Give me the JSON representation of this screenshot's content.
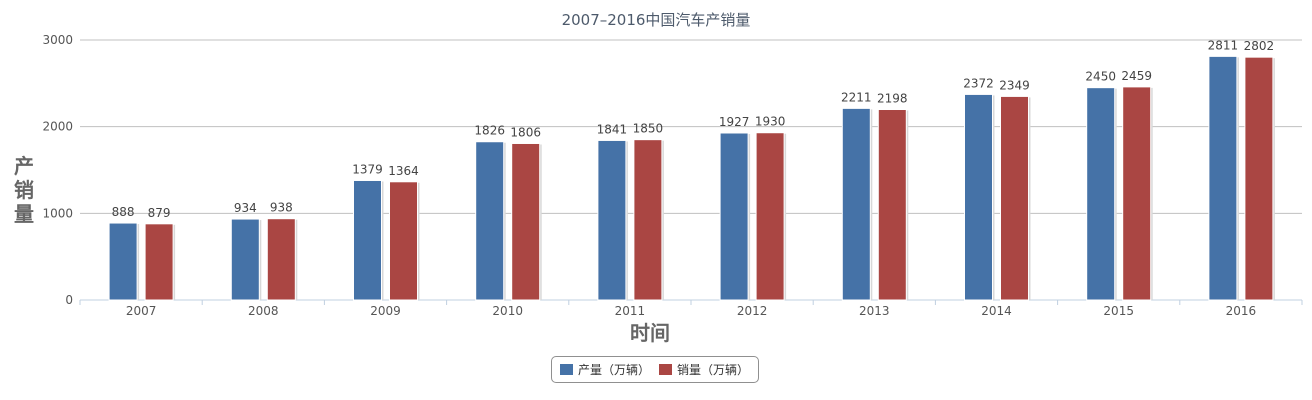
{
  "chart_data": {
    "type": "bar",
    "title": "2007–2016中国汽车产销量",
    "xlabel": "时间",
    "ylabel": "产销量",
    "categories": [
      "2007",
      "2008",
      "2009",
      "2010",
      "2011",
      "2012",
      "2013",
      "2014",
      "2015",
      "2016"
    ],
    "series": [
      {
        "name": "产量（万辆）",
        "color": "#4572a7",
        "values": [
          888,
          934,
          1379,
          1826,
          1841,
          1927,
          2211,
          2372,
          2450,
          2811
        ]
      },
      {
        "name": "销量（万辆）",
        "color": "#aa4643",
        "values": [
          879,
          938,
          1364,
          1806,
          1850,
          1930,
          2198,
          2349,
          2459,
          2802
        ]
      }
    ],
    "ylim": [
      0,
      3000
    ],
    "yticks": [
      "0",
      "1000",
      "2000",
      "3000"
    ],
    "grid": true,
    "legend_position": "bottom-center",
    "data_labels": true
  }
}
